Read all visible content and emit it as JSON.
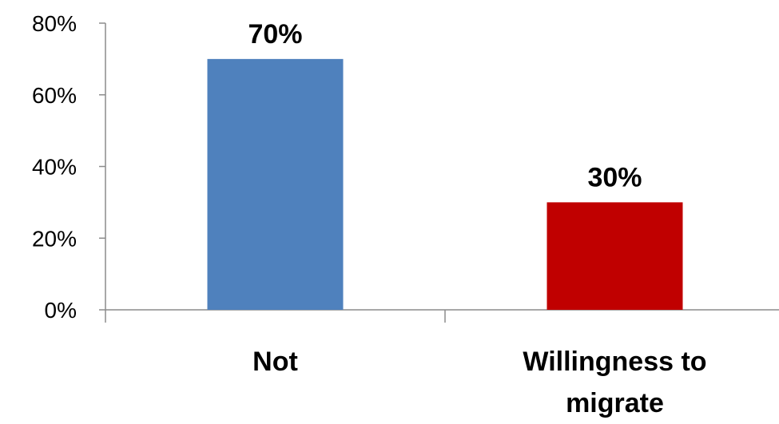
{
  "chart_data": {
    "type": "bar",
    "categories": [
      "Not",
      "Willingness to migrate"
    ],
    "category_lines": [
      [
        "Not"
      ],
      [
        "Willingness to",
        "migrate"
      ]
    ],
    "values": [
      70,
      30
    ],
    "value_labels": [
      "70%",
      "30%"
    ],
    "colors": [
      "#4f81bd",
      "#c00000"
    ],
    "ylim": [
      0,
      80
    ],
    "yticks": [
      0,
      20,
      40,
      60,
      80
    ],
    "ytick_labels": [
      "0%",
      "20%",
      "40%",
      "60%",
      "80%"
    ],
    "title": "",
    "xlabel": "",
    "ylabel": "",
    "grid": false,
    "legend": "none"
  }
}
